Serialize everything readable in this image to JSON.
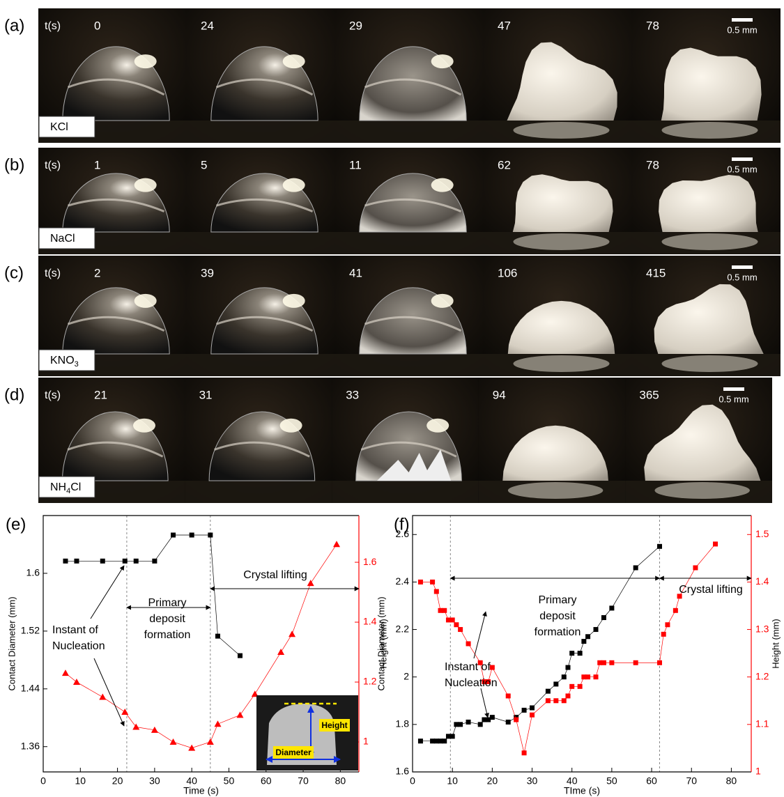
{
  "panels": [
    {
      "letter": "(a)",
      "t_label": "t(s)",
      "times": [
        0,
        24,
        29,
        47,
        78
      ],
      "scale": "0.5 mm",
      "salt": [
        {
          "text": "KCl"
        }
      ]
    },
    {
      "letter": "(b)",
      "t_label": "t(s)",
      "times": [
        1,
        5,
        11,
        62,
        78
      ],
      "scale": "0.5 mm",
      "salt": [
        {
          "text": "NaCl"
        }
      ]
    },
    {
      "letter": "(c)",
      "t_label": "t(s)",
      "times": [
        2,
        39,
        41,
        106,
        415
      ],
      "scale": "0.5 mm",
      "salt": [
        {
          "text": "KNO"
        },
        {
          "text": "3",
          "sub": true
        }
      ]
    },
    {
      "letter": "(d)",
      "t_label": "t(s)",
      "times": [
        21,
        31,
        33,
        94,
        365
      ],
      "scale": "0.5 mm",
      "salt": [
        {
          "text": "NH"
        },
        {
          "text": "4",
          "sub": true
        },
        {
          "text": "Cl"
        }
      ]
    }
  ],
  "chart_data": [
    {
      "type": "line",
      "letter": "(e)",
      "xlabel": "Time (s)",
      "ylabel": "Contact Diameter (mm)",
      "y2label": "Height (mm)",
      "xlim": [
        0,
        85
      ],
      "xticks": [
        0,
        10,
        20,
        30,
        40,
        50,
        60,
        70,
        80
      ],
      "ylim": [
        1.325,
        1.68
      ],
      "yticks": [
        1.36,
        1.44,
        1.52,
        1.6
      ],
      "y2lim": [
        0.9,
        1.756
      ],
      "y2ticks": [
        1.0,
        1.2,
        1.4,
        1.6
      ],
      "vlines": [
        22.5,
        45
      ],
      "annotations": {
        "nucleation": [
          "Instant of",
          "Nucleation"
        ],
        "primary": [
          "Primary",
          "deposit",
          "formation"
        ],
        "lifting": "Crystal lifting"
      },
      "inset_labels": [
        "Height",
        "Diameter"
      ],
      "series": [
        {
          "color": "#000000",
          "marker": "square",
          "axis": "y",
          "x": [
            6,
            9,
            16,
            22,
            25,
            30,
            35,
            40,
            45,
            47,
            53
          ],
          "values": [
            1.617,
            1.617,
            1.617,
            1.617,
            1.617,
            1.617,
            1.653,
            1.653,
            1.653,
            1.513,
            1.486
          ]
        },
        {
          "color": "#ff0000",
          "marker": "triangle",
          "axis": "y2",
          "x": [
            6,
            9,
            16,
            22,
            25,
            30,
            35,
            40,
            45,
            47,
            53,
            57,
            64,
            67,
            72,
            79
          ],
          "values": [
            1.23,
            1.2,
            1.15,
            1.1,
            1.05,
            1.04,
            1.0,
            0.98,
            1.0,
            1.06,
            1.09,
            1.16,
            1.3,
            1.36,
            1.53,
            1.66
          ]
        }
      ]
    },
    {
      "type": "line",
      "letter": "(f)",
      "xlabel": "TIme (s)",
      "ylabel": "Contact Diameter (mm)",
      "y2label": "Height (mm)",
      "xlim": [
        0,
        85
      ],
      "xticks": [
        0,
        10,
        20,
        30,
        40,
        50,
        60,
        70,
        80
      ],
      "ylim": [
        1.6,
        2.68
      ],
      "yticks": [
        1.6,
        1.8,
        2.0,
        2.2,
        2.4,
        2.6
      ],
      "y2lim": [
        1.0,
        1.54
      ],
      "y2ticks": [
        1.0,
        1.1,
        1.2,
        1.3,
        1.4,
        1.5
      ],
      "vlines": [
        9.5,
        62
      ],
      "annotations": {
        "nucleation": [
          "Instant of",
          "Nucleation"
        ],
        "primary": [
          "Primary",
          "deposit",
          "formation"
        ],
        "lifting": "Crystal lifting"
      },
      "series": [
        {
          "color": "#000000",
          "marker": "square",
          "axis": "y",
          "x": [
            2,
            5,
            6,
            7,
            8,
            9,
            10,
            11,
            12,
            14,
            17,
            18,
            19,
            20,
            24,
            26,
            28,
            30,
            34,
            36,
            38,
            39,
            40,
            42,
            43,
            44,
            46,
            48,
            50,
            56,
            62
          ],
          "values": [
            1.73,
            1.73,
            1.73,
            1.73,
            1.73,
            1.75,
            1.75,
            1.8,
            1.8,
            1.81,
            1.8,
            1.82,
            1.82,
            1.83,
            1.81,
            1.83,
            1.86,
            1.87,
            1.94,
            1.97,
            2.0,
            2.04,
            2.1,
            2.1,
            2.15,
            2.17,
            2.2,
            2.25,
            2.29,
            2.46,
            2.55
          ]
        },
        {
          "color": "#ff0000",
          "marker": "square",
          "axis": "y2",
          "x": [
            2,
            5,
            6,
            7,
            8,
            9,
            10,
            11,
            12,
            14,
            17,
            18,
            19,
            20,
            24,
            26,
            28,
            30,
            34,
            36,
            38,
            39,
            40,
            42,
            43,
            44,
            46,
            47,
            48,
            50,
            56,
            62,
            63,
            64,
            66,
            67,
            71,
            76
          ],
          "values": [
            1.4,
            1.4,
            1.38,
            1.34,
            1.34,
            1.32,
            1.32,
            1.31,
            1.3,
            1.27,
            1.23,
            1.19,
            1.19,
            1.22,
            1.16,
            1.11,
            1.04,
            1.12,
            1.15,
            1.15,
            1.15,
            1.16,
            1.18,
            1.18,
            1.2,
            1.2,
            1.2,
            1.23,
            1.23,
            1.23,
            1.23,
            1.23,
            1.29,
            1.31,
            1.34,
            1.37,
            1.43,
            1.48
          ]
        }
      ]
    }
  ]
}
